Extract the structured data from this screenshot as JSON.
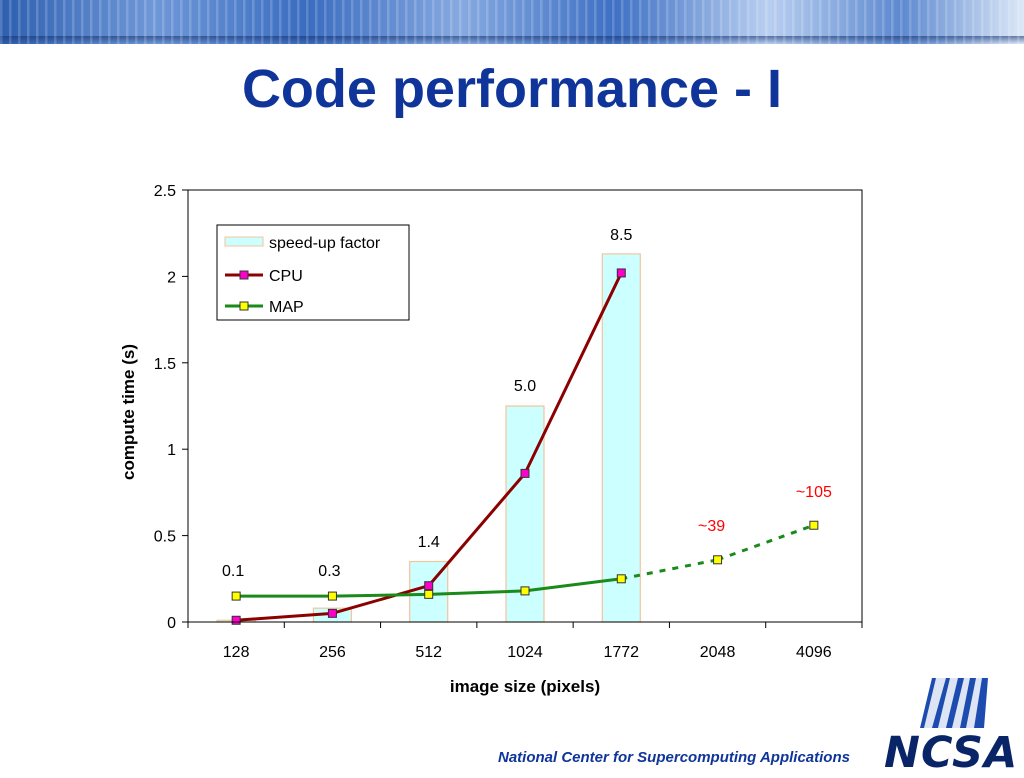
{
  "slide": {
    "title": "Code performance - I",
    "footer": "National Center for Supercomputing Applications",
    "logo_text": "NCSA"
  },
  "colors": {
    "title": "#10359a",
    "bar_fill": "#ccffff",
    "bar_stroke": "#f4c49a",
    "cpu_line": "#8b0000",
    "cpu_marker": "#ff00cc",
    "map_line": "#1a8a1a",
    "map_marker": "#ffff00",
    "annotation_red": "#ff0000"
  },
  "chart_data": {
    "type": "bar+line",
    "categories": [
      "128",
      "256",
      "512",
      "1024",
      "1772",
      "2048",
      "4096"
    ],
    "xlabel": "image size (pixels)",
    "ylabel": "compute time (s)",
    "ylim": [
      0,
      2.5
    ],
    "yticks": [
      "0",
      "0.5",
      "1",
      "1.5",
      "2",
      "2.5"
    ],
    "grid": false,
    "legend_position": "top-left",
    "series": [
      {
        "name": "speed-up factor",
        "type": "bar",
        "values": [
          0.01,
          0.08,
          0.35,
          1.25,
          2.13,
          null,
          null
        ],
        "data_labels": [
          "0.1",
          "0.3",
          "1.4",
          "5.0",
          "8.5",
          "",
          ""
        ]
      },
      {
        "name": "CPU",
        "type": "line",
        "values": [
          0.01,
          0.05,
          0.21,
          0.86,
          2.02,
          null,
          null
        ]
      },
      {
        "name": "MAP",
        "type": "line",
        "values": [
          0.15,
          0.15,
          0.16,
          0.18,
          0.25,
          0.36,
          0.56
        ],
        "dashed_from_index": 4
      }
    ],
    "annotations": [
      {
        "text": "~39",
        "category_index": 5,
        "y": 0.56
      },
      {
        "text": "~105",
        "category_index": 6,
        "y": 0.75
      }
    ]
  }
}
